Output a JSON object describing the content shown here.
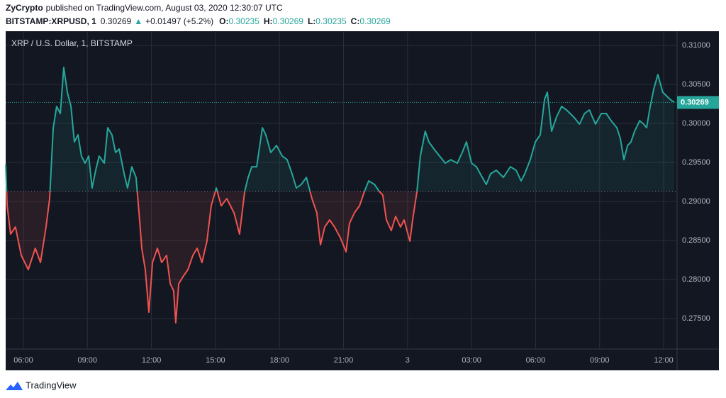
{
  "header": {
    "author": "ZyCrypto",
    "published": "published on TradingView.com, August 03, 2020 12:30:07 UTC",
    "symbol": "BITSTAMP:XRPUSD, 1",
    "last": 0.30269,
    "arrow": "▲",
    "change": "+0.01497 (+5.2%)",
    "ohlc": [
      {
        "label": "O:",
        "value": 0.30235
      },
      {
        "label": "H:",
        "value": 0.30269
      },
      {
        "label": "L:",
        "value": 0.30235
      },
      {
        "label": "C:",
        "value": 0.30269
      }
    ]
  },
  "chart_data": {
    "type": "line",
    "title": "XRP / U.S. Dollar, 1, BITSTAMP",
    "x": [
      5.17,
      5.24,
      5.4,
      5.63,
      5.9,
      6.23,
      6.56,
      6.8,
      7.06,
      7.23,
      7.4,
      7.56,
      7.73,
      7.89,
      8.06,
      8.23,
      8.39,
      8.56,
      8.72,
      8.89,
      9.06,
      9.22,
      9.39,
      9.55,
      9.79,
      9.95,
      10.15,
      10.32,
      10.49,
      10.72,
      10.88,
      11.08,
      11.28,
      11.42,
      11.55,
      11.71,
      11.88,
      12.05,
      12.28,
      12.48,
      12.71,
      12.88,
      13.04,
      13.14,
      13.28,
      13.48,
      13.71,
      13.94,
      14.14,
      14.37,
      14.6,
      14.8,
      15.04,
      15.27,
      15.53,
      15.87,
      16.13,
      16.37,
      16.53,
      16.7,
      16.93,
      17.2,
      17.36,
      17.59,
      17.86,
      18.13,
      18.36,
      18.59,
      18.79,
      19.02,
      19.26,
      19.52,
      19.75,
      19.92,
      20.12,
      20.35,
      20.58,
      20.85,
      21.12,
      21.28,
      21.51,
      21.75,
      21.98,
      22.18,
      22.45,
      22.68,
      22.84,
      23.01,
      23.24,
      23.44,
      23.67,
      23.84,
      24.11,
      24.24,
      24.44,
      24.6,
      24.83,
      25.0,
      25.24,
      25.5,
      25.77,
      26.03,
      26.33,
      26.56,
      26.76,
      27.0,
      27.23,
      27.5,
      27.69,
      27.89,
      28.16,
      28.49,
      28.82,
      29.09,
      29.32,
      29.49,
      29.75,
      29.99,
      30.22,
      30.42,
      30.55,
      30.75,
      30.98,
      31.22,
      31.45,
      31.79,
      32.06,
      32.29,
      32.52,
      32.81,
      33.08,
      33.31,
      33.54,
      33.81,
      33.97,
      34.14,
      34.31,
      34.47,
      34.64,
      34.88,
      35.07,
      35.2,
      35.37,
      35.54,
      35.73,
      35.96,
      36.13,
      36.3,
      36.5
    ],
    "values": [
      0.29473,
      0.28945,
      0.28582,
      0.28673,
      0.28309,
      0.28127,
      0.284,
      0.28218,
      0.28673,
      0.29036,
      0.29945,
      0.30218,
      0.30127,
      0.30718,
      0.304,
      0.30218,
      0.29764,
      0.29855,
      0.29582,
      0.29491,
      0.29582,
      0.29173,
      0.294,
      0.29582,
      0.29491,
      0.29945,
      0.29855,
      0.29627,
      0.29673,
      0.29355,
      0.29173,
      0.29445,
      0.29309,
      0.28855,
      0.284,
      0.28127,
      0.27582,
      0.28218,
      0.284,
      0.28218,
      0.28309,
      0.27945,
      0.27855,
      0.27445,
      0.27945,
      0.28036,
      0.28127,
      0.28309,
      0.284,
      0.28218,
      0.28491,
      0.28945,
      0.29173,
      0.28945,
      0.29036,
      0.28855,
      0.28582,
      0.29127,
      0.29309,
      0.29445,
      0.29445,
      0.29945,
      0.29855,
      0.29627,
      0.29718,
      0.29582,
      0.29536,
      0.29355,
      0.29173,
      0.29218,
      0.29309,
      0.29036,
      0.28855,
      0.28445,
      0.28673,
      0.28764,
      0.28673,
      0.28536,
      0.28355,
      0.28718,
      0.28855,
      0.28945,
      0.29127,
      0.29264,
      0.29218,
      0.29127,
      0.29082,
      0.28764,
      0.28627,
      0.28809,
      0.28673,
      0.28764,
      0.28491,
      0.28764,
      0.29127,
      0.29582,
      0.299,
      0.29764,
      0.29673,
      0.29582,
      0.29491,
      0.29536,
      0.29491,
      0.29627,
      0.29764,
      0.29491,
      0.29445,
      0.29309,
      0.29218,
      0.29355,
      0.294,
      0.29309,
      0.29445,
      0.294,
      0.29264,
      0.29355,
      0.29536,
      0.29764,
      0.29855,
      0.30309,
      0.304,
      0.299,
      0.30082,
      0.30218,
      0.30173,
      0.30082,
      0.29991,
      0.30127,
      0.30173,
      0.29991,
      0.30127,
      0.30127,
      0.30036,
      0.29945,
      0.29809,
      0.29536,
      0.29718,
      0.29764,
      0.299,
      0.30036,
      0.29991,
      0.29945,
      0.30218,
      0.30445,
      0.30627,
      0.304,
      0.30355,
      0.30309,
      0.30269
    ],
    "baseline": 0.2913,
    "last": 0.30269,
    "color_above": "#26a69a",
    "color_below": "#ef5350",
    "xlim": [
      5.17,
      36.63
    ],
    "xticks": [
      {
        "value": 6,
        "label": "06:00"
      },
      {
        "value": 9,
        "label": "09:00"
      },
      {
        "value": 12,
        "label": "12:00"
      },
      {
        "value": 15,
        "label": "15:00"
      },
      {
        "value": 18,
        "label": "18:00"
      },
      {
        "value": 21,
        "label": "21:00"
      },
      {
        "value": 24,
        "label": "3"
      },
      {
        "value": 27,
        "label": "03:00"
      },
      {
        "value": 30,
        "label": "06:00"
      },
      {
        "value": 33,
        "label": "09:00"
      },
      {
        "value": 36,
        "label": "12:00"
      }
    ],
    "ylim": [
      0.27109,
      0.31173
    ],
    "yticks": [
      {
        "value": 0.275,
        "label": "0.27500"
      },
      {
        "value": 0.28,
        "label": "0.28000"
      },
      {
        "value": 0.285,
        "label": "0.28500"
      },
      {
        "value": 0.29,
        "label": "0.29000"
      },
      {
        "value": 0.295,
        "label": "0.29500"
      },
      {
        "value": 0.3,
        "label": "0.30000"
      },
      {
        "value": 0.305,
        "label": "0.30500"
      },
      {
        "value": 0.31,
        "label": "0.31000"
      }
    ],
    "grid": true
  },
  "footer": {
    "brand": "TradingView"
  }
}
